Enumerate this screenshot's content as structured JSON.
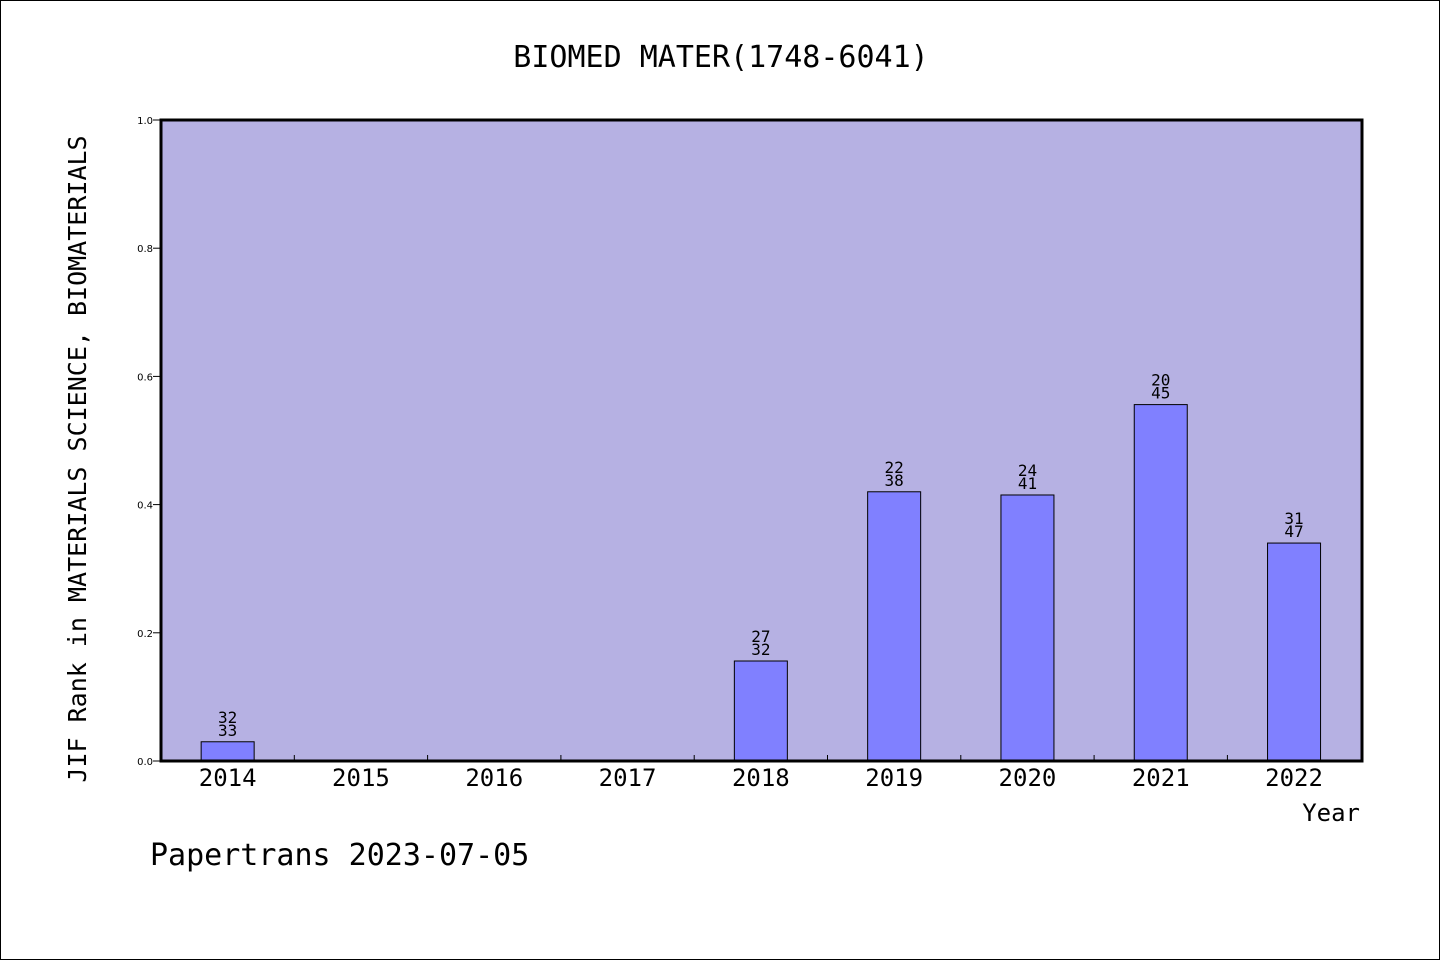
{
  "chart_data": {
    "type": "bar",
    "title": "BIOMED MATER(1748-6041)",
    "xlabel": "Year",
    "ylabel": "JIF Rank in MATERIALS SCIENCE, BIOMATERIALS",
    "ylim": [
      0,
      1.0
    ],
    "yticks": [
      "0.0",
      "0.2",
      "0.4",
      "0.6",
      "0.8",
      "1.0"
    ],
    "categories": [
      "2014",
      "2015",
      "2016",
      "2017",
      "2018",
      "2019",
      "2020",
      "2021",
      "2022"
    ],
    "values": [
      0.03,
      0,
      0,
      0,
      0.156,
      0.42,
      0.415,
      0.556,
      0.34
    ],
    "ranks": [
      "32",
      "",
      "",
      "",
      "27",
      "22",
      "24",
      "20",
      "31"
    ],
    "totals": [
      "33",
      "",
      "",
      "",
      "32",
      "38",
      "41",
      "45",
      "47"
    ],
    "grid": false,
    "colors": {
      "plot_background": "#b6b1e3",
      "bar_fill": "#8080ff",
      "bar_stroke": "#000000"
    }
  },
  "footer": "Papertrans 2023-07-05"
}
